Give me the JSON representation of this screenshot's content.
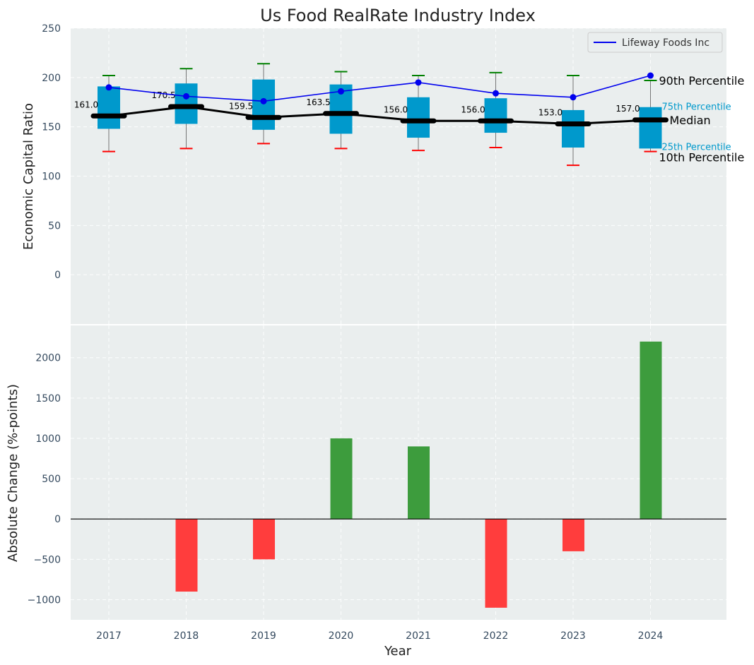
{
  "chart_data": [
    {
      "type": "box",
      "title": "Us Food RealRate Industry Index",
      "ylabel": "Economic Capital Ratio",
      "ylim": [
        -50,
        250
      ],
      "yticks": [
        0,
        50,
        100,
        150,
        200,
        250
      ],
      "categories": [
        "2017",
        "2018",
        "2019",
        "2020",
        "2021",
        "2022",
        "2023",
        "2024"
      ],
      "p10": [
        125,
        128,
        133,
        128,
        126,
        129,
        111,
        125
      ],
      "p25": [
        148,
        153,
        147,
        143,
        139,
        144,
        129,
        128
      ],
      "median": [
        161.0,
        170.5,
        159.5,
        163.5,
        156.0,
        156.0,
        153.0,
        157.0
      ],
      "median_labels": [
        "161.0",
        "170.5",
        "159.5",
        "163.5",
        "156.0",
        "156.0",
        "153.0",
        "157.0"
      ],
      "p75": [
        191,
        194,
        198,
        193,
        180,
        179,
        167,
        170
      ],
      "p90": [
        202,
        209,
        214,
        206,
        202,
        205,
        202,
        197
      ],
      "series": [
        {
          "name": "Lifeway Foods Inc",
          "values": [
            190,
            181,
            176,
            186,
            195,
            184,
            180,
            202
          ]
        }
      ],
      "annotations": {
        "p90": "90th Percentile",
        "p75": "75th Percentile",
        "median": "Median",
        "p25": "25th Percentile",
        "p10": "10th Percentile"
      },
      "legend": "top-right",
      "colors": {
        "box": "#0099cc",
        "series": "#0000ee",
        "median": "#000000",
        "p90_cap": "#008000",
        "p10_cap": "#ff0000",
        "bg": "#eaeeee"
      }
    },
    {
      "type": "bar",
      "ylabel": "Absolute Change (%-points)",
      "xlabel": "Year",
      "ylim": [
        -1250,
        2400
      ],
      "yticks": [
        -1000,
        -500,
        0,
        500,
        1000,
        1500,
        2000
      ],
      "ytick_labels": [
        "−1000",
        "−500",
        "0",
        "500",
        "1000",
        "1500",
        "2000"
      ],
      "categories": [
        "2017",
        "2018",
        "2019",
        "2020",
        "2021",
        "2022",
        "2023",
        "2024"
      ],
      "values": [
        0,
        -900,
        -500,
        1000,
        900,
        -1100,
        -400,
        2200
      ],
      "colors": {
        "positive": "#3d9c3d",
        "negative": "#ff3d3d",
        "zero_line": "#000000"
      }
    }
  ]
}
